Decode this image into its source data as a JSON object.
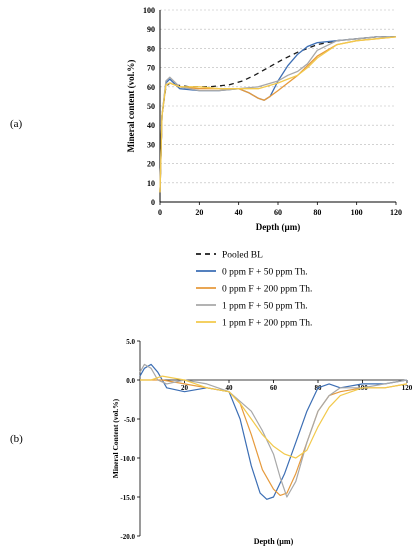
{
  "legend": [
    {
      "label": "Pooled BL",
      "color": "#1a1a1a",
      "dash": "5,4"
    },
    {
      "label": "0 ppm F + 50 ppm Th.",
      "color": "#3c6eb4",
      "dash": ""
    },
    {
      "label": "0 ppm F + 200 ppm Th.",
      "color": "#e69a3c",
      "dash": ""
    },
    {
      "label": "1 ppm F + 50 ppm Th.",
      "color": "#a8a8a8",
      "dash": ""
    },
    {
      "label": "1 ppm F + 200 ppm Th.",
      "color": "#f2c94c",
      "dash": ""
    }
  ],
  "chart_data": [
    {
      "panel": "(a)",
      "type": "line",
      "xlabel": "Depth (µm)",
      "ylabel": "Mineral content (vol.%)",
      "xlim": [
        0,
        120
      ],
      "ylim": [
        0,
        100
      ],
      "xticks": [
        0,
        20,
        40,
        60,
        80,
        100,
        120
      ],
      "yticks": [
        0,
        10,
        20,
        30,
        40,
        50,
        60,
        70,
        80,
        90,
        100
      ],
      "grid": "horizontal",
      "series": [
        {
          "name": "Pooled BL",
          "x": [
            0,
            1,
            3,
            5,
            8,
            15,
            25,
            35,
            42,
            48,
            55,
            62,
            70,
            80,
            90,
            100,
            110,
            120
          ],
          "y": [
            5,
            45,
            60,
            62,
            61,
            60,
            60,
            61,
            63,
            66,
            70,
            74,
            78,
            82,
            84,
            85,
            86,
            86
          ]
        },
        {
          "name": "0 ppm F + 50 ppm Th.",
          "x": [
            0,
            1,
            3,
            5,
            10,
            20,
            30,
            40,
            45,
            50,
            53,
            56,
            60,
            65,
            70,
            75,
            80,
            90,
            100,
            110,
            120
          ],
          "y": [
            5,
            45,
            62,
            64,
            59,
            58,
            58,
            59,
            57,
            54,
            53,
            55,
            63,
            71,
            77,
            81,
            83,
            84,
            85,
            86,
            86
          ]
        },
        {
          "name": "0 ppm F + 200 ppm Th.",
          "x": [
            0,
            1,
            3,
            5,
            10,
            20,
            30,
            40,
            45,
            50,
            53,
            56,
            60,
            65,
            70,
            75,
            80,
            90,
            100,
            110,
            120
          ],
          "y": [
            5,
            45,
            61,
            62,
            60,
            59,
            59,
            59,
            57,
            54,
            53,
            55,
            58,
            62,
            66,
            71,
            76,
            82,
            84,
            85,
            86
          ]
        },
        {
          "name": "1 ppm F + 50 ppm Th.",
          "x": [
            0,
            1,
            3,
            5,
            10,
            20,
            30,
            40,
            50,
            60,
            65,
            70,
            75,
            80,
            90,
            100,
            110,
            120
          ],
          "y": [
            5,
            45,
            63,
            65,
            60,
            58,
            58,
            59,
            60,
            63,
            66,
            68,
            72,
            79,
            84,
            85,
            86,
            86
          ]
        },
        {
          "name": "1 ppm F + 200 ppm Th.",
          "x": [
            0,
            1,
            3,
            5,
            10,
            20,
            30,
            40,
            50,
            60,
            65,
            70,
            75,
            80,
            90,
            100,
            110,
            120
          ],
          "y": [
            5,
            45,
            61,
            62,
            60,
            60,
            59,
            59,
            59,
            62,
            64,
            66,
            70,
            75,
            82,
            84,
            85,
            86
          ]
        }
      ]
    },
    {
      "panel": "(b)",
      "type": "line",
      "xlabel": "Depth (µm)",
      "ylabel": "Mineral Content (vol.%)",
      "xlim": [
        0,
        120
      ],
      "ylim": [
        -20,
        5
      ],
      "xticks": [
        20,
        40,
        60,
        80,
        100,
        120
      ],
      "yticks": [
        5.0,
        0.0,
        -5.0,
        -10.0,
        -15.0,
        -20.0
      ],
      "ytick_labels": [
        "5.0",
        "0.0",
        "-5.0",
        "-10.0",
        "-15.0",
        "-20.0"
      ],
      "grid": "none",
      "series": [
        {
          "name": "0 ppm F + 50 ppm Th.",
          "x": [
            0,
            2,
            5,
            8,
            12,
            20,
            30,
            40,
            45,
            50,
            54,
            57,
            60,
            65,
            70,
            75,
            80,
            85,
            90,
            100,
            110,
            120
          ],
          "y": [
            0.5,
            1.5,
            2.0,
            1.0,
            -1.0,
            -1.5,
            -1.0,
            -1.5,
            -5.0,
            -11.0,
            -14.5,
            -15.3,
            -15.0,
            -12.0,
            -8.0,
            -4.0,
            -1.0,
            -0.5,
            -1.0,
            -0.5,
            -0.5,
            0.0
          ]
        },
        {
          "name": "0 ppm F + 200 ppm Th.",
          "x": [
            0,
            5,
            10,
            20,
            30,
            40,
            45,
            50,
            55,
            60,
            63,
            66,
            70,
            75,
            80,
            85,
            90,
            100,
            110,
            120
          ],
          "y": [
            0.0,
            0.0,
            0.0,
            -0.5,
            -1.0,
            -1.5,
            -3.0,
            -7.0,
            -11.5,
            -14.0,
            -14.8,
            -14.5,
            -12.0,
            -8.0,
            -4.0,
            -2.0,
            -1.5,
            -1.0,
            -1.0,
            -0.5
          ]
        },
        {
          "name": "1 ppm F + 50 ppm Th.",
          "x": [
            0,
            2,
            5,
            8,
            12,
            20,
            30,
            40,
            50,
            55,
            60,
            63,
            66,
            70,
            75,
            80,
            85,
            90,
            100,
            110,
            120
          ],
          "y": [
            1.0,
            2.0,
            1.5,
            0.0,
            -0.5,
            0.0,
            -0.5,
            -1.5,
            -4.0,
            -6.5,
            -9.5,
            -12.5,
            -15.0,
            -13.0,
            -8.0,
            -4.0,
            -2.0,
            -1.0,
            -1.0,
            -0.5,
            0.0
          ]
        },
        {
          "name": "1 ppm F + 200 ppm Th.",
          "x": [
            0,
            5,
            10,
            20,
            30,
            40,
            45,
            50,
            55,
            60,
            65,
            70,
            75,
            80,
            85,
            90,
            100,
            110,
            120
          ],
          "y": [
            0.0,
            0.0,
            0.5,
            0.0,
            -1.0,
            -1.5,
            -3.0,
            -5.0,
            -7.0,
            -8.5,
            -9.5,
            -10.0,
            -9.0,
            -6.0,
            -3.5,
            -2.0,
            -1.0,
            -1.0,
            -0.5
          ]
        }
      ]
    }
  ],
  "labels": {
    "panel_a": "(a)",
    "panel_b": "(b)"
  }
}
